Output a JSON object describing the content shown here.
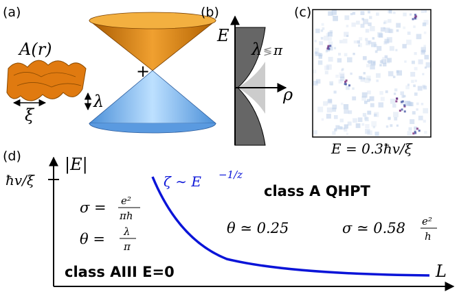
{
  "panel_a": {
    "label": "(a)",
    "potential": "A(r)",
    "length": "ξ",
    "height": "λ",
    "plus": "+"
  },
  "panel_b": {
    "label": "(b)",
    "y_axis": "E",
    "x_axis": "ρ",
    "condition_lambda": "λ",
    "condition_relation": "≶",
    "condition_pi": "π"
  },
  "panel_c": {
    "label": "(c)",
    "caption": "E = 0.3ħv/ξ"
  },
  "panel_d": {
    "label": "(d)",
    "y_axis": "|E|",
    "y_tick": "ħv/ξ",
    "x_axis": "L",
    "curve_label": "ζ ∼ E",
    "curve_exponent": "−1/z",
    "class_a": "class A  QHPT",
    "class_aiii": "class AIII E=0",
    "sigma_aiii": {
      "lhs": "σ =",
      "num": "e²",
      "den": "πh"
    },
    "theta_aiii": {
      "lhs": "θ =",
      "num": "λ",
      "den": "π"
    },
    "theta_a": "θ ≃ 0.25",
    "sigma_a": {
      "lhs": "σ ≃ 0.58",
      "num": "e²",
      "den": "h"
    }
  }
}
